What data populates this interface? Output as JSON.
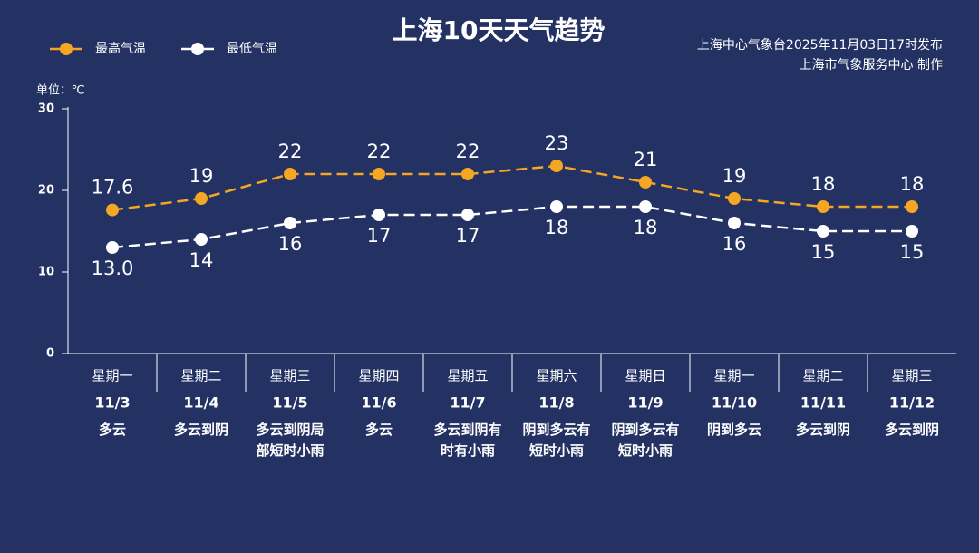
{
  "chart_data": {
    "type": "line",
    "title": "上海10天天气趋势",
    "source": "上海中心气象台2025年11月03日17时发布",
    "credit": "上海市气象服务中心 制作",
    "unit_label": "单位：℃",
    "weekdays": [
      "星期一",
      "星期二",
      "星期三",
      "星期四",
      "星期五",
      "星期六",
      "星期日",
      "星期一",
      "星期二",
      "星期三"
    ],
    "weekday_colors": [
      "#ffffff",
      "#ffffff",
      "#ffffff",
      "#ffffff",
      "#ffffff",
      "#f5a623",
      "#f5a623",
      "#ffffff",
      "#ffffff",
      "#ffffff"
    ],
    "categories": [
      "11/3",
      "11/4",
      "11/5",
      "11/6",
      "11/7",
      "11/8",
      "11/9",
      "11/10",
      "11/11",
      "11/12"
    ],
    "weather": [
      "多云",
      "多云到阴",
      "多云到阴局部短时小雨",
      "多云",
      "多云到阴有时有小雨",
      "阴到多云有短时小雨",
      "阴到多云有短时小雨",
      "阴到多云",
      "多云到阴",
      "多云到阴"
    ],
    "series": [
      {
        "name": "最高气温",
        "color": "#f5a623",
        "values": [
          17.6,
          19,
          22,
          22,
          22,
          23,
          21,
          19,
          18,
          18
        ]
      },
      {
        "name": "最低气温",
        "color": "#ffffff",
        "values": [
          13,
          14,
          16,
          17,
          17,
          18,
          18,
          16,
          15,
          15
        ],
        "value_labels": [
          "13.0",
          "14",
          "16",
          "17",
          "17",
          "18",
          "18",
          "16",
          "15",
          "15"
        ]
      }
    ],
    "ylim": [
      0,
      30
    ],
    "yticks": [
      0,
      10,
      20,
      30
    ],
    "legend": "top-left"
  }
}
